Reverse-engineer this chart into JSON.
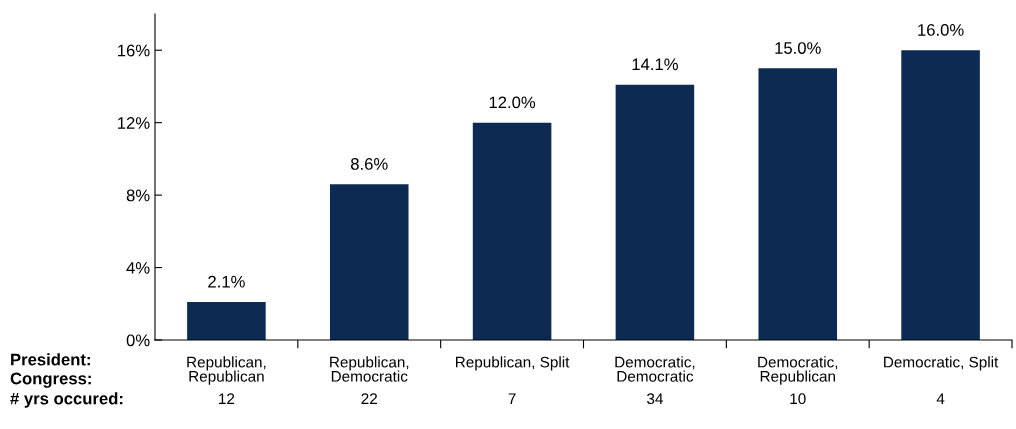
{
  "chart_data": {
    "type": "bar",
    "categories": [
      "Republican,\nRepublican",
      "Republican,\nDemocratic",
      "Republican, Split",
      "Democratic,\nDemocratic",
      "Democratic,\nRepublican",
      "Democratic, Split"
    ],
    "values": [
      2.1,
      8.6,
      12.0,
      14.1,
      15.0,
      16.0
    ],
    "value_labels": [
      "2.1%",
      "8.6%",
      "12.0%",
      "14.1%",
      "15.0%",
      "16.0%"
    ],
    "color": "#0d2a52",
    "ylim": [
      0,
      18
    ],
    "yticks": [
      {
        "value": 0,
        "label": "0%"
      },
      {
        "value": 4,
        "label": "4%"
      },
      {
        "value": 8,
        "label": "8%"
      },
      {
        "value": 12,
        "label": "12%"
      },
      {
        "value": 16,
        "label": "16%"
      }
    ],
    "grid": false,
    "legend": false,
    "annotations": [
      "President:",
      "Congress:",
      "# yrs occured:",
      "12",
      "22",
      "7",
      "34",
      "10",
      "4"
    ]
  }
}
